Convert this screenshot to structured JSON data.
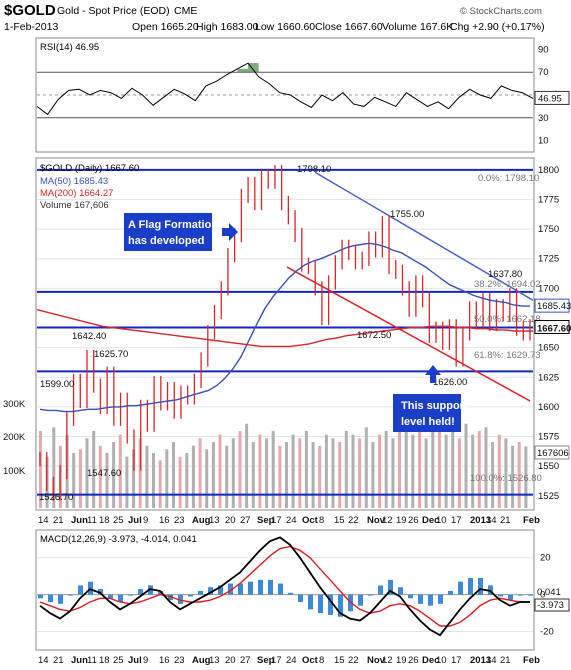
{
  "header": {
    "symbol": "$GOLD",
    "name": "Gold - Spot Price (EOD)",
    "exchange": "CME",
    "date": "1-Feb-2013",
    "open": "Open 1665.20",
    "high": "High 1683.00",
    "low": "Low 1660.60",
    "close": "Close 1667.60",
    "volume": "Volume 167.6K",
    "chg": "Chg +2.90 (+0.17%)",
    "brand": "© StockCharts.com"
  },
  "colors": {
    "price": "#d9262b",
    "ma50": "#3a4fb8",
    "ma200": "#d9262b",
    "level": "#1326c9",
    "ann_bg": "#1a3ec8",
    "vol": "#b0b0b0",
    "vol_up": "#e8a7ae",
    "macd": "#000000",
    "signal": "#e31b23",
    "hist": "#3d8bd8"
  },
  "chart_data": [
    {
      "type": "line",
      "panel": "RSI",
      "title": "RSI(14) 46.95",
      "ylim": [
        0,
        100
      ],
      "y_ticks": [
        "90",
        "70",
        "50",
        "30",
        "10"
      ],
      "reference_levels": [
        70,
        30
      ],
      "last_value": "46.95",
      "values": [
        40,
        33,
        46,
        54,
        55,
        50,
        54,
        52,
        47,
        56,
        50,
        41,
        48,
        55,
        51,
        45,
        58,
        62,
        68,
        73,
        78,
        66,
        60,
        52,
        50,
        44,
        39,
        50,
        45,
        52,
        42,
        40,
        48,
        44,
        40,
        52,
        46,
        40,
        44,
        38,
        48,
        55,
        50,
        47,
        58,
        54,
        52,
        47
      ]
    },
    {
      "type": "line",
      "panel": "Price",
      "title": "$GOLD (Daily) 1667.60",
      "legend": [
        "MA(50) 1685.43",
        "MA(200) 1664.27",
        "Volume 167,606"
      ],
      "ylim": [
        1513,
        1810
      ],
      "y_ticks": [
        "1800",
        "1775",
        "1750",
        "1725",
        "1700",
        "1650",
        "1625",
        "1600",
        "1575",
        "1550",
        "1525"
      ],
      "volume_ticks": [
        "300K",
        "200K",
        "100K"
      ],
      "x_labels": [
        "14",
        "21",
        "Jun",
        "11",
        "18",
        "25",
        "Jul",
        "9",
        "16",
        "23",
        "Aug",
        "13",
        "20",
        "27",
        "Sep",
        "17",
        "24",
        "Oct",
        "8",
        "15",
        "22",
        "Nov",
        "12",
        "19",
        "26",
        "Dec",
        "10",
        "17",
        "2013",
        "14",
        "21",
        "Feb"
      ],
      "price": [
        1556,
        1535,
        1527,
        1545,
        1590,
        1622,
        1605,
        1642,
        1618,
        1600,
        1628,
        1590,
        1606,
        1575,
        1552,
        1600,
        1585,
        1620,
        1603,
        1615,
        1596,
        1612,
        1608,
        1622,
        1640,
        1663,
        1680,
        1700,
        1728,
        1745,
        1778,
        1788,
        1772,
        1795,
        1790,
        1798,
        1772,
        1760,
        1745,
        1720,
        1718,
        1700,
        1675,
        1705,
        1722,
        1735,
        1730,
        1722,
        1725,
        1742,
        1732,
        1755,
        1718,
        1714,
        1700,
        1682,
        1705,
        1690,
        1660,
        1666,
        1654,
        1668,
        1640,
        1662,
        1683,
        1672,
        1690,
        1670,
        1685,
        1678,
        1694,
        1666,
        1662,
        1668
      ],
      "ma50": [
        1598,
        1597,
        1597,
        1596,
        1596,
        1597,
        1598,
        1598,
        1599,
        1600,
        1600,
        1601,
        1601,
        1602,
        1603,
        1604,
        1605,
        1606,
        1608,
        1610,
        1612,
        1614,
        1618,
        1624,
        1632,
        1642,
        1656,
        1670,
        1683,
        1693,
        1701,
        1709,
        1715,
        1720,
        1723,
        1725,
        1728,
        1731,
        1734,
        1736,
        1737,
        1738,
        1737,
        1735,
        1732,
        1730,
        1726,
        1722,
        1718,
        1713,
        1708,
        1703,
        1700,
        1697,
        1694,
        1692,
        1690,
        1689,
        1688,
        1686,
        1685,
        1685
      ],
      "ma200": [
        1682,
        1680,
        1678,
        1676,
        1674,
        1672,
        1670,
        1668,
        1667,
        1666,
        1665,
        1664,
        1663,
        1662,
        1661,
        1660,
        1659,
        1658,
        1657,
        1656,
        1655,
        1654,
        1653,
        1652,
        1651,
        1651,
        1651,
        1651,
        1652,
        1653,
        1655,
        1657,
        1658,
        1660,
        1661,
        1662,
        1663,
        1664,
        1665,
        1666,
        1667,
        1667,
        1668,
        1668,
        1668,
        1667,
        1667,
        1666,
        1666,
        1665,
        1665,
        1664,
        1664,
        1664
      ],
      "volume": [
        210,
        140,
        220,
        170,
        200,
        150,
        160,
        190,
        210,
        170,
        150,
        180,
        200,
        140,
        160,
        190,
        170,
        150,
        130,
        160,
        180,
        140,
        150,
        170,
        190,
        160,
        180,
        200,
        170,
        190,
        210,
        230,
        180,
        200,
        190,
        210,
        170,
        180,
        200,
        190,
        210,
        180,
        170,
        200,
        190,
        180,
        210,
        200,
        190,
        220,
        180,
        200,
        210,
        190,
        220,
        230,
        200,
        210,
        190,
        220,
        240,
        200,
        210,
        190,
        230,
        200,
        210,
        220,
        180,
        200,
        190,
        170,
        180,
        168
      ],
      "support_resistance": [
        1800,
        1697,
        1667,
        1630,
        1526
      ],
      "annotations": {
        "peak": "1798.10",
        "high_1755": "1755.00",
        "high_1637": "1637.80",
        "low_1672": "1672.50",
        "low_1626": "1626.00",
        "low_1642": "1642.40",
        "low_1625": "1625.70",
        "low_1599": "1599.00",
        "low_1547": "1547.60",
        "low_1526": "1526.70",
        "fib_0": "0.0%: 1798.10",
        "fib_38": "38.2%: 1694.02",
        "fib_50": "50.0%: 1662.18",
        "fib_61": "61.8%: 1629.73",
        "fib_100": "100.0%: 1526.80",
        "flag_note": "A Flag Formation has developed",
        "support_note": "This support level held!"
      },
      "last_value_labels": [
        "1685.43",
        "1667.60",
        "167606"
      ]
    },
    {
      "type": "line",
      "panel": "MACD",
      "title": "MACD(12,26,9) -3.973, -4.014, 0.041",
      "ylim": [
        -30,
        35
      ],
      "y_ticks": [
        "20",
        "0",
        "-20"
      ],
      "last_values": [
        "0.041",
        "-3.973"
      ],
      "macd": [
        -6,
        -10,
        -13,
        -9,
        -2,
        3,
        1,
        -4,
        -8,
        -5,
        -1,
        3,
        2,
        -4,
        -8,
        -5,
        -2,
        1,
        4,
        8,
        12,
        18,
        24,
        29,
        31,
        27,
        20,
        12,
        4,
        -3,
        -10,
        -13,
        -14,
        -10,
        -4,
        2,
        -1,
        -8,
        -14,
        -19,
        -22,
        -15,
        -8,
        -2,
        3,
        2,
        -3,
        -6,
        -4,
        -4
      ],
      "signal": [
        -4,
        -6,
        -8,
        -9,
        -7,
        -4,
        -2,
        -2,
        -4,
        -5,
        -4,
        -2,
        0,
        -1,
        -3,
        -4,
        -4,
        -3,
        -1,
        2,
        6,
        11,
        16,
        21,
        25,
        26,
        24,
        20,
        14,
        8,
        2,
        -4,
        -8,
        -10,
        -9,
        -6,
        -5,
        -6,
        -9,
        -13,
        -17,
        -17,
        -15,
        -11,
        -6,
        -3,
        -2,
        -3,
        -4,
        -4
      ],
      "x_labels": [
        "14",
        "21",
        "Jun",
        "11",
        "18",
        "25",
        "Jul",
        "9",
        "16",
        "23",
        "Aug",
        "13",
        "20",
        "27",
        "Sep",
        "17",
        "24",
        "Oct",
        "8",
        "15",
        "22",
        "Nov",
        "12",
        "19",
        "26",
        "Dec",
        "10",
        "17",
        "2013",
        "14",
        "21",
        "Feb"
      ]
    }
  ]
}
